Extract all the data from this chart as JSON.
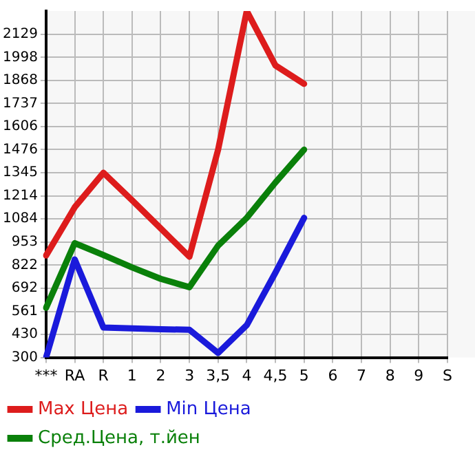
{
  "chart_data": {
    "type": "line",
    "categories": [
      "***",
      "RA",
      "R",
      "1",
      "2",
      "3",
      "3,5",
      "4",
      "4,5",
      "5",
      "6",
      "7",
      "8",
      "9",
      "S"
    ],
    "series": [
      {
        "name": "Max Цена",
        "color": "#dd1c1c",
        "values": [
          877,
          1150,
          1345,
          1190,
          1030,
          870,
          1475,
          2260,
          1952,
          1848,
          null,
          null,
          null,
          null,
          null
        ]
      },
      {
        "name": "Min Цена",
        "color": "#1a1adb",
        "values": [
          300,
          855,
          470,
          465,
          460,
          457,
          326,
          483,
          780,
          1090,
          null,
          null,
          null,
          null,
          null
        ]
      },
      {
        "name": "Сред.Цена, т.йен",
        "color": "#0a800a",
        "values": [
          581,
          947,
          880,
          810,
          745,
          698,
          933,
          1090,
          1290,
          1476,
          null,
          null,
          null,
          null,
          null
        ]
      }
    ],
    "ylim": [
      300,
      2260
    ],
    "yticks": [
      300,
      430,
      561,
      692,
      822,
      953,
      1084,
      1214,
      1345,
      1476,
      1606,
      1737,
      1868,
      1998,
      2129
    ],
    "grid": true,
    "legend": "bottom",
    "marker": "none",
    "line_style": "solid"
  }
}
